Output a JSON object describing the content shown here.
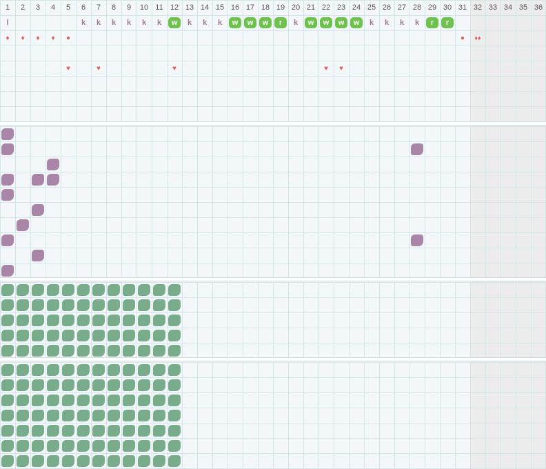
{
  "columns": [
    "1",
    "2",
    "3",
    "4",
    "5",
    "6",
    "7",
    "8",
    "9",
    "10",
    "11",
    "12",
    "13",
    "14",
    "15",
    "16",
    "17",
    "18",
    "19",
    "20",
    "21",
    "22",
    "23",
    "24",
    "25",
    "26",
    "27",
    "28",
    "29",
    "30",
    "31",
    "32",
    "33",
    "34",
    "35",
    "36"
  ],
  "colors": {
    "purple_blob": "#a985a8",
    "green_blob": "#79ac8b",
    "badge_green": "#6cc24a",
    "letter_purple": "#a0789a",
    "drop_red": "#e06060"
  },
  "row1_marks": [
    {
      "col": 1,
      "text": "l",
      "style": "letter"
    },
    {
      "col": 6,
      "text": "k",
      "style": "letter"
    },
    {
      "col": 7,
      "text": "k",
      "style": "letter"
    },
    {
      "col": 8,
      "text": "k",
      "style": "letter"
    },
    {
      "col": 9,
      "text": "k",
      "style": "letter"
    },
    {
      "col": 10,
      "text": "k",
      "style": "letter"
    },
    {
      "col": 11,
      "text": "k",
      "style": "letter"
    },
    {
      "col": 12,
      "text": "w",
      "style": "badge"
    },
    {
      "col": 13,
      "text": "k",
      "style": "letter"
    },
    {
      "col": 14,
      "text": "k",
      "style": "letter"
    },
    {
      "col": 15,
      "text": "k",
      "style": "letter"
    },
    {
      "col": 16,
      "text": "w",
      "style": "badge"
    },
    {
      "col": 17,
      "text": "w",
      "style": "badge"
    },
    {
      "col": 18,
      "text": "w",
      "style": "badge"
    },
    {
      "col": 19,
      "text": "r",
      "style": "badge"
    },
    {
      "col": 20,
      "text": "k",
      "style": "letter"
    },
    {
      "col": 21,
      "text": "w",
      "style": "badge"
    },
    {
      "col": 22,
      "text": "w",
      "style": "badge"
    },
    {
      "col": 23,
      "text": "w",
      "style": "badge"
    },
    {
      "col": 24,
      "text": "w",
      "style": "badge"
    },
    {
      "col": 25,
      "text": "k",
      "style": "letter"
    },
    {
      "col": 26,
      "text": "k",
      "style": "letter"
    },
    {
      "col": 27,
      "text": "k",
      "style": "letter"
    },
    {
      "col": 28,
      "text": "k",
      "style": "letter"
    },
    {
      "col": 29,
      "text": "r",
      "style": "badge"
    },
    {
      "col": 30,
      "text": "r",
      "style": "badge"
    }
  ],
  "row2_marks": [
    {
      "col": 1,
      "icon": "drop-icon"
    },
    {
      "col": 2,
      "icon": "drop-icon"
    },
    {
      "col": 3,
      "icon": "drop-icon"
    },
    {
      "col": 4,
      "icon": "drop-icon"
    },
    {
      "col": 5,
      "icon": "dot-icon"
    },
    {
      "col": 31,
      "icon": "dot-icon"
    },
    {
      "col": 32,
      "icon": "double-drop-icon"
    }
  ],
  "row4_marks": [
    {
      "col": 5,
      "icon": "heart-icon"
    },
    {
      "col": 7,
      "icon": "heart-icon"
    },
    {
      "col": 12,
      "icon": "heart-icon"
    },
    {
      "col": 22,
      "icon": "heart-icon"
    },
    {
      "col": 23,
      "icon": "heart-icon"
    }
  ],
  "section2_blobs": [
    [
      0,
      0
    ],
    [
      1,
      0
    ],
    [
      1,
      27
    ],
    [
      2,
      3
    ],
    [
      3,
      0
    ],
    [
      3,
      2
    ],
    [
      3,
      3
    ],
    [
      4,
      0
    ],
    [
      5,
      2
    ],
    [
      6,
      1
    ],
    [
      7,
      0
    ],
    [
      7,
      27
    ],
    [
      8,
      2
    ],
    [
      9,
      0
    ]
  ],
  "section3": {
    "rows": 5,
    "cols": 12
  },
  "section4": {
    "rows": 7,
    "cols": 12
  }
}
